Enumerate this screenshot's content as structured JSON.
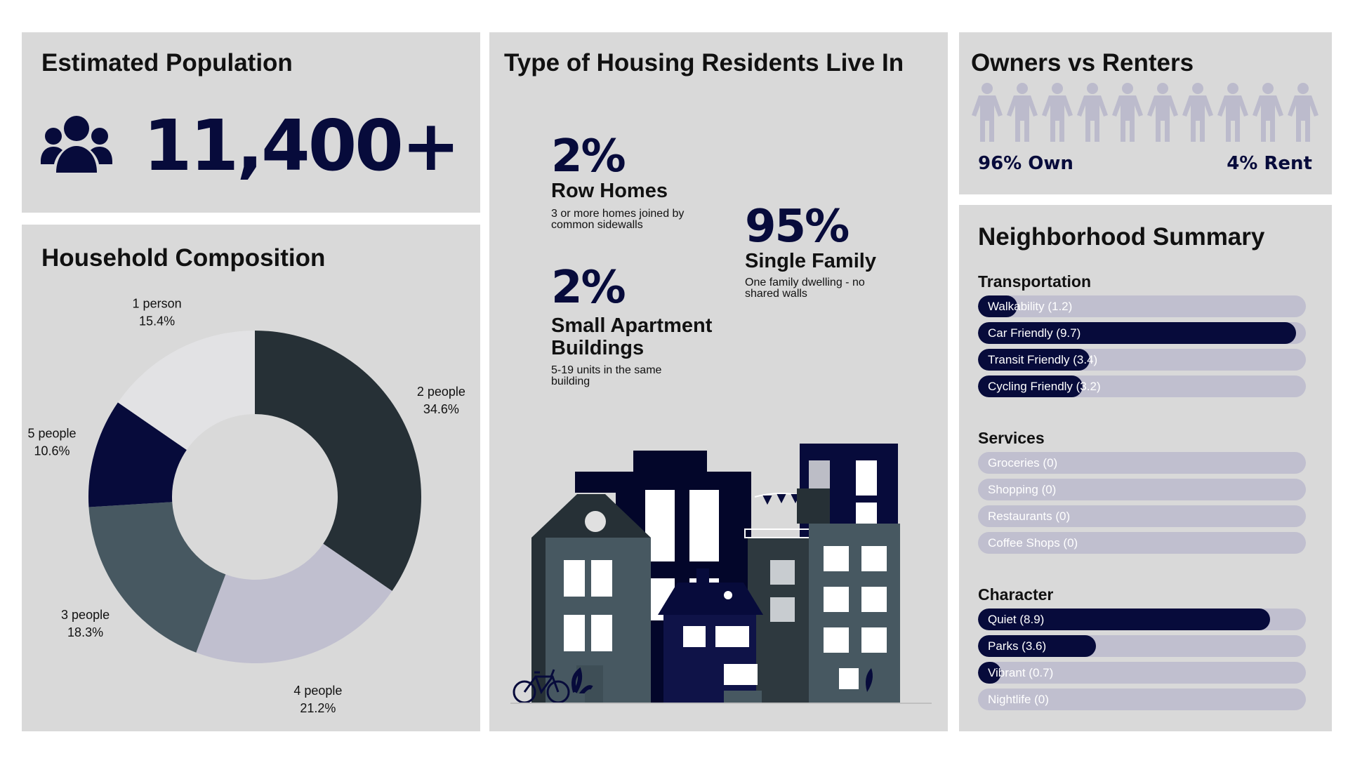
{
  "population": {
    "title": "Estimated Population",
    "value": "11,400+",
    "icon": "group-people-icon"
  },
  "household": {
    "title": "Household Composition"
  },
  "housing": {
    "title": "Type of Housing Residents Live In",
    "items": [
      {
        "pct": "2%",
        "name": "Row Homes",
        "desc": "3 or more homes joined by common sidewalls"
      },
      {
        "pct": "2%",
        "name": "Small Apartment Buildings",
        "desc": "5-19 units in the same building"
      },
      {
        "pct": "95%",
        "name": "Single Family",
        "desc": "One family dwelling - no shared walls"
      }
    ]
  },
  "owners": {
    "title": "Owners vs Renters",
    "own_label": "96% Own",
    "rent_label": "4% Rent",
    "own_fraction": 0.96,
    "rent_fraction": 0.04
  },
  "neighborhood": {
    "title": "Neighborhood Summary",
    "max_score": 10,
    "sections": [
      {
        "name": "Transportation",
        "items": [
          {
            "label": "Walkability (1.2)",
            "score": 1.2
          },
          {
            "label": "Car Friendly (9.7)",
            "score": 9.7
          },
          {
            "label": "Transit Friendly (3.4)",
            "score": 3.4
          },
          {
            "label": "Cycling Friendly (3.2)",
            "score": 3.2
          }
        ]
      },
      {
        "name": "Services",
        "items": [
          {
            "label": "Groceries (0)",
            "score": 0
          },
          {
            "label": "Shopping (0)",
            "score": 0
          },
          {
            "label": "Restaurants (0)",
            "score": 0
          },
          {
            "label": "Coffee Shops (0)",
            "score": 0
          }
        ]
      },
      {
        "name": "Character",
        "items": [
          {
            "label": "Quiet (8.9)",
            "score": 8.9
          },
          {
            "label": "Parks (3.6)",
            "score": 3.6
          },
          {
            "label": "Vibrant (0.7)",
            "score": 0.7
          },
          {
            "label": "Nightlife (0)",
            "score": 0
          }
        ]
      }
    ]
  },
  "colors": {
    "navy": "#070b3b",
    "panel": "#d9d9d9",
    "bar_track": "#c0bfcf",
    "people_inactive": "#bcbbcc"
  },
  "chart_data": [
    {
      "type": "pie",
      "title": "Household Composition",
      "categories": [
        "2 people",
        "4 people",
        "3 people",
        "5 people",
        "1 person"
      ],
      "values": [
        34.6,
        21.2,
        18.3,
        10.6,
        15.4
      ],
      "value_labels": [
        "34.6%",
        "21.2%",
        "18.3%",
        "10.6%",
        "15.4%"
      ],
      "colors": [
        "#263036",
        "#c0bfcf",
        "#475861",
        "#070b3b",
        "#e2e2e4"
      ],
      "donut": true
    },
    {
      "type": "bar",
      "title": "Neighborhood Summary",
      "categories": [
        "Walkability",
        "Car Friendly",
        "Transit Friendly",
        "Cycling Friendly",
        "Groceries",
        "Shopping",
        "Restaurants",
        "Coffee Shops",
        "Quiet",
        "Parks",
        "Vibrant",
        "Nightlife"
      ],
      "values": [
        1.2,
        9.7,
        3.4,
        3.2,
        0,
        0,
        0,
        0,
        8.9,
        3.6,
        0.7,
        0
      ],
      "xlim": [
        0,
        10
      ]
    }
  ]
}
